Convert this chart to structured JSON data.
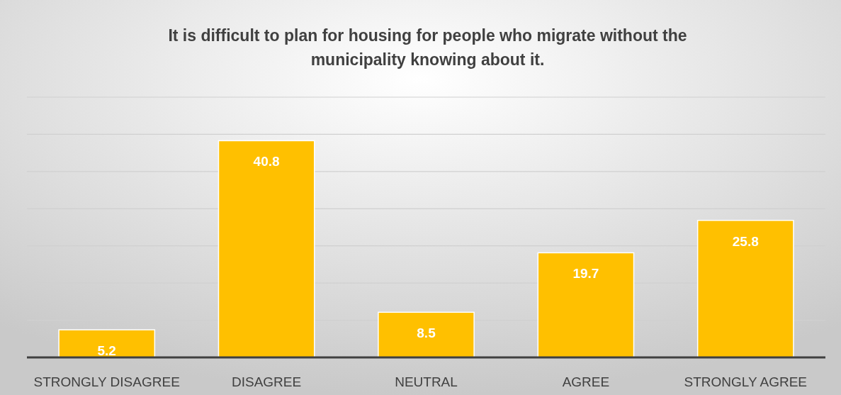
{
  "chart_data": {
    "type": "bar",
    "title": "It is difficult to plan for housing for people who migrate without the municipality knowing about it.",
    "categories": [
      "STRONGLY DISAGREE",
      "DISAGREE",
      "NEUTRAL",
      "AGREE",
      "STRONGLY AGREE"
    ],
    "values": [
      5.2,
      40.8,
      8.5,
      19.7,
      25.8
    ],
    "color": "#ffc000",
    "data_labels": true,
    "ylim": [
      0,
      49
    ],
    "yticks": [
      {
        "value": 0,
        "label": null
      },
      {
        "value": 7,
        "label": null
      },
      {
        "value": 14,
        "label": null
      },
      {
        "value": 21,
        "label": null
      },
      {
        "value": 28,
        "label": null
      },
      {
        "value": 35,
        "label": null
      },
      {
        "value": 42,
        "label": null
      },
      {
        "value": 49,
        "label": null
      }
    ],
    "grid": "y",
    "tick_labels": "x"
  }
}
